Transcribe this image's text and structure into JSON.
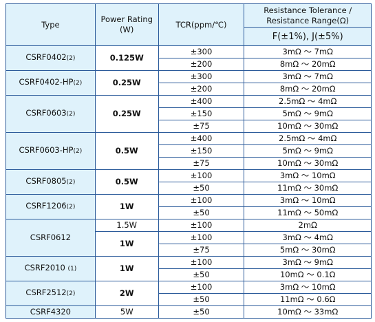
{
  "header": {
    "type": "Type",
    "power_line1": "Power Rating",
    "power_line2": "(W)",
    "tcr": "TCR(ppm/℃)",
    "range_line1": "Resistance Tolerance  /",
    "range_line2": "Resistance Range(Ω)",
    "tolerance": "F(±1%), J(±5%)"
  },
  "groups": [
    {
      "name": "CSRF0402",
      "note": "(2)",
      "ratings": [
        {
          "power": "0.125W",
          "rows": [
            {
              "tcr": "±300",
              "range": "3mΩ ～ 7mΩ"
            },
            {
              "tcr": "±200",
              "range": "8mΩ ～ 20mΩ"
            }
          ]
        }
      ]
    },
    {
      "name": "CSRF0402-HP",
      "note": "(2)",
      "ratings": [
        {
          "power": "0.25W",
          "rows": [
            {
              "tcr": "±300",
              "range": "3mΩ ～ 7mΩ"
            },
            {
              "tcr": "±200",
              "range": "8mΩ ～ 20mΩ"
            }
          ]
        }
      ]
    },
    {
      "name": "CSRF0603",
      "note": "(2)",
      "ratings": [
        {
          "power": "0.25W",
          "rows": [
            {
              "tcr": "±400",
              "range": "2.5mΩ ～ 4mΩ"
            },
            {
              "tcr": "±150",
              "range": "5mΩ ～ 9mΩ"
            },
            {
              "tcr": "±75",
              "range": "10mΩ ～ 30mΩ"
            }
          ]
        }
      ]
    },
    {
      "name": "CSRF0603-HP",
      "note": "(2)",
      "ratings": [
        {
          "power": "0.5W",
          "rows": [
            {
              "tcr": "±400",
              "range": "2.5mΩ ～ 4mΩ"
            },
            {
              "tcr": "±150",
              "range": "5mΩ ～ 9mΩ"
            },
            {
              "tcr": "±75",
              "range": "10mΩ ～ 30mΩ"
            }
          ]
        }
      ]
    },
    {
      "name": "CSRF0805",
      "note": "(2)",
      "ratings": [
        {
          "power": "0.5W",
          "rows": [
            {
              "tcr": "±100",
              "range": "3mΩ ～ 10mΩ"
            },
            {
              "tcr": "±50",
              "range": "11mΩ ～ 30mΩ"
            }
          ]
        }
      ]
    },
    {
      "name": "CSRF1206",
      "note": "(2)",
      "ratings": [
        {
          "power": "1W",
          "rows": [
            {
              "tcr": "±100",
              "range": "3mΩ ～ 10mΩ"
            },
            {
              "tcr": "±50",
              "range": "11mΩ ～ 50mΩ"
            }
          ]
        }
      ]
    },
    {
      "name": "CSRF0612",
      "note": "",
      "ratings": [
        {
          "power": "1.5W",
          "rows": [
            {
              "tcr": "±100",
              "range": "2mΩ"
            }
          ]
        },
        {
          "power": "1W",
          "rows": [
            {
              "tcr": "±100",
              "range": "3mΩ ～ 4mΩ"
            },
            {
              "tcr": "±75",
              "range": "5mΩ ～ 30mΩ"
            }
          ]
        }
      ]
    },
    {
      "name": "CSRF2010",
      "note": "(1)",
      "ratings": [
        {
          "power": "1W",
          "rows": [
            {
              "tcr": "±100",
              "range": "3mΩ ～ 9mΩ"
            },
            {
              "tcr": "±50",
              "range": "10mΩ ～ 0.1Ω"
            }
          ]
        }
      ]
    },
    {
      "name": "CSRF2512",
      "note": "(2)",
      "ratings": [
        {
          "power": "2W",
          "rows": [
            {
              "tcr": "±100",
              "range": "3mΩ ～ 10mΩ"
            },
            {
              "tcr": "±50",
              "range": "11mΩ ～ 0.6Ω"
            }
          ]
        }
      ]
    },
    {
      "name": "CSRF4320",
      "note": "",
      "ratings": [
        {
          "power": "5W",
          "rows": [
            {
              "tcr": "±50",
              "range": "10mΩ ～ 33mΩ"
            }
          ]
        }
      ]
    }
  ]
}
